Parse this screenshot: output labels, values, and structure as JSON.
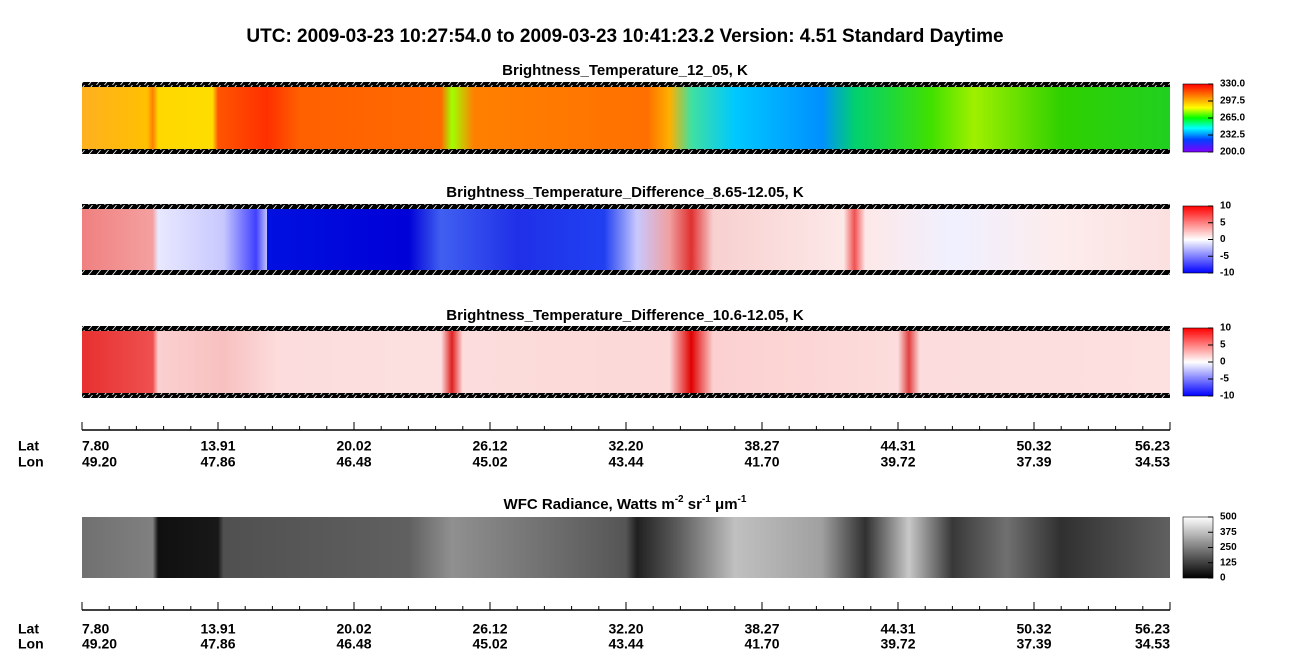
{
  "title": "UTC:  2009-03-23   10:27:54.0  to  2009-03-23   10:41:23.2    Version: 4.51  Standard Daytime",
  "panels": [
    {
      "title": "Brightness_Temperature_12_05, K",
      "colorbar": {
        "range": [
          200,
          330
        ],
        "ticks": [
          {
            "value": 330,
            "label": "330.0"
          },
          {
            "value": 297.5,
            "label": "297.5"
          },
          {
            "value": 265,
            "label": "265.0"
          },
          {
            "value": 232.5,
            "label": "232.5"
          },
          {
            "value": 200,
            "label": "200.0"
          }
        ]
      }
    },
    {
      "title": "Brightness_Temperature_Difference_8.65-12.05, K",
      "colorbar": {
        "range": [
          -10,
          10
        ],
        "ticks": [
          10,
          5,
          0,
          -5,
          -10
        ]
      }
    },
    {
      "title": "Brightness_Temperature_Difference_10.6-12.05, K",
      "colorbar": {
        "range": [
          -10,
          10
        ],
        "ticks": [
          10,
          5,
          0,
          -5,
          -10
        ]
      }
    },
    {
      "title_parts": [
        "WFC Radiance, Watts m",
        "-2",
        " sr",
        "-1",
        " μm",
        "-1"
      ],
      "colorbar": {
        "range": [
          0,
          500
        ],
        "ticks": [
          500,
          375,
          250,
          125,
          0
        ]
      }
    }
  ],
  "axes": [
    {
      "lat_label": "Lat",
      "lon_label": "Lon",
      "lat": [
        "7.80",
        "13.91",
        "20.02",
        "26.12",
        "32.20",
        "38.27",
        "44.31",
        "50.32",
        "56.23"
      ],
      "lon": [
        "49.20",
        "47.86",
        "46.48",
        "45.02",
        "43.44",
        "41.70",
        "39.72",
        "37.39",
        "34.53"
      ]
    },
    {
      "lat_label": "Lat",
      "lon_label": "Lon",
      "lat": [
        "7.80",
        "13.91",
        "20.02",
        "26.12",
        "32.20",
        "38.27",
        "44.31",
        "50.32",
        "56.23"
      ],
      "lon": [
        "49.20",
        "47.86",
        "46.48",
        "45.02",
        "43.44",
        "41.70",
        "39.72",
        "37.39",
        "34.53"
      ]
    }
  ]
}
